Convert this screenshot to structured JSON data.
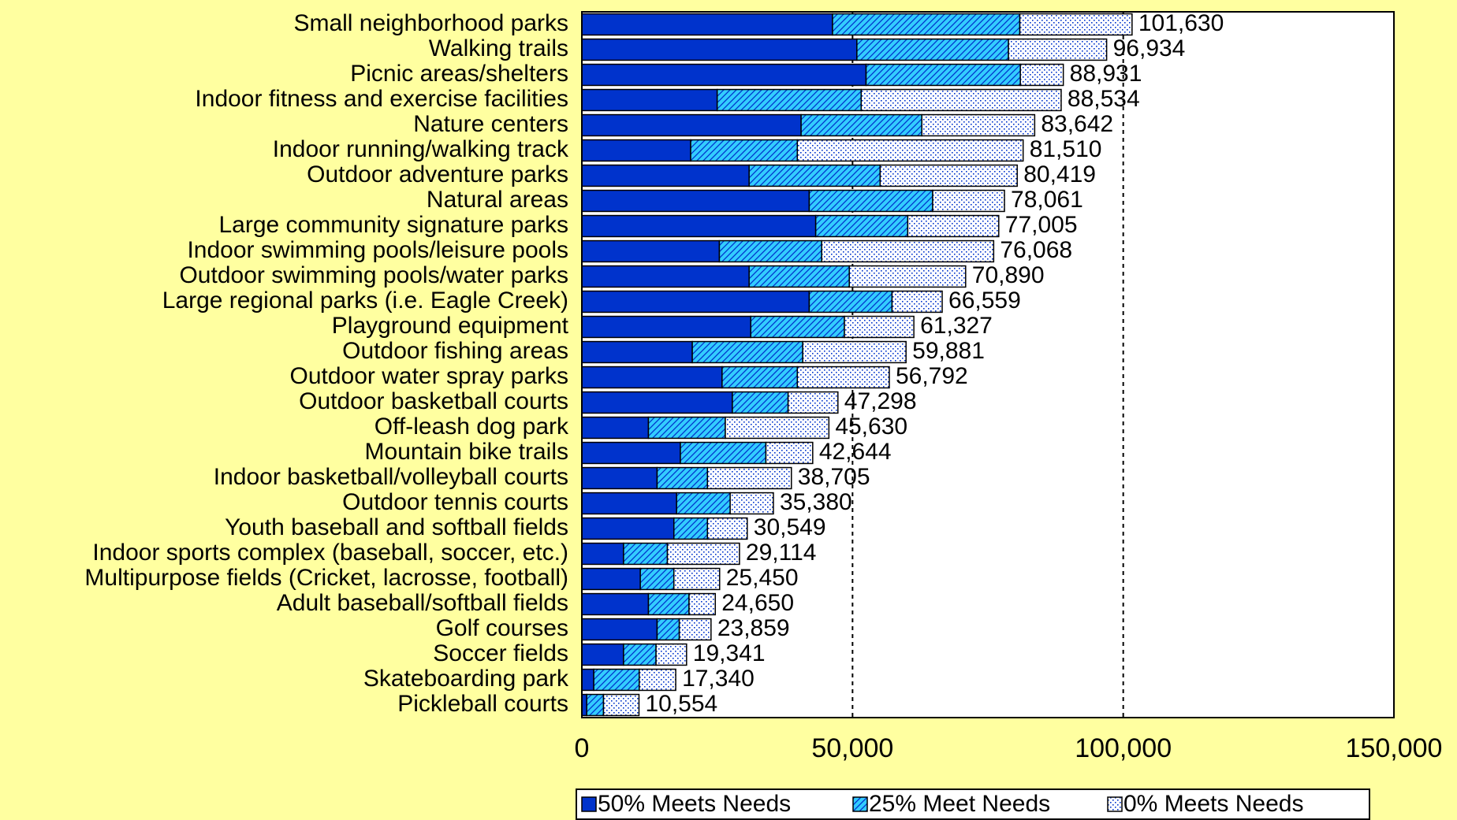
{
  "chart_data": {
    "type": "stacked-bar-horizontal",
    "categories": [
      "Small neighborhood parks",
      "Walking trails",
      "Picnic areas/shelters",
      "Indoor fitness and exercise facilities",
      "Nature centers",
      "Indoor running/walking track",
      "Outdoor adventure parks",
      "Natural areas",
      "Large community signature parks",
      "Indoor swimming pools/leisure pools",
      "Outdoor swimming pools/water parks",
      "Large regional parks (i.e. Eagle Creek)",
      "Playground equipment",
      "Outdoor fishing areas",
      "Outdoor water spray parks",
      "Outdoor basketball courts",
      "Off-leash dog park",
      "Mountain bike trails",
      "Indoor basketball/volleyball courts",
      "Outdoor tennis courts",
      "Youth baseball and softball fields",
      "Indoor sports complex (baseball, soccer, etc.)",
      "Multipurpose fields (Cricket, lacrosse, football)",
      "Adult baseball/softball fields",
      "Golf courses",
      "Soccer fields",
      "Skateboarding park",
      "Pickleball courts"
    ],
    "series": [
      {
        "name": "50% Meets Needs",
        "color": "#0033cc",
        "values": [
          46300,
          50800,
          52500,
          25000,
          40500,
          20100,
          30900,
          42000,
          43200,
          25400,
          30900,
          42000,
          31200,
          20400,
          25900,
          27800,
          12300,
          18200,
          13900,
          17500,
          17000,
          7700,
          10800,
          12300,
          13900,
          7700,
          2200,
          900
        ]
      },
      {
        "name": "25% Meet Needs",
        "color": "#33ccff",
        "values": [
          34600,
          28000,
          28500,
          26600,
          22300,
          19700,
          24200,
          22800,
          17000,
          18900,
          18500,
          15300,
          17300,
          20400,
          13900,
          10300,
          14200,
          15800,
          9300,
          9900,
          6200,
          8100,
          6200,
          7500,
          4100,
          6000,
          8400,
          3100
        ]
      },
      {
        "name": "0% Meets Needs",
        "color": "#ffffff",
        "values": [
          20730,
          18134,
          7931,
          36934,
          20842,
          41710,
          25319,
          13261,
          16805,
          31768,
          21490,
          9259,
          12827,
          19081,
          16992,
          9198,
          19130,
          8644,
          15505,
          7980,
          7349,
          13314,
          8450,
          4850,
          5859,
          5641,
          6740,
          6554
        ]
      }
    ],
    "totals": [
      101630,
      96934,
      88931,
      88534,
      83642,
      81510,
      80419,
      78061,
      77005,
      76068,
      70890,
      66559,
      61327,
      59881,
      56792,
      47298,
      45630,
      42644,
      38705,
      35380,
      30549,
      29114,
      25450,
      24650,
      23859,
      19341,
      17340,
      10554
    ],
    "total_labels": [
      "101,630",
      "96,934",
      "88,931",
      "88,534",
      "83,642",
      "81,510",
      "80,419",
      "78,061",
      "77,005",
      "76,068",
      "70,890",
      "66,559",
      "61,327",
      "59,881",
      "56,792",
      "47,298",
      "45,630",
      "42,644",
      "38,705",
      "35,380",
      "30,549",
      "29,114",
      "25,450",
      "24,650",
      "23,859",
      "19,341",
      "17,340",
      "10,554"
    ],
    "xlim": [
      0,
      150000
    ],
    "xticks": [
      0,
      {
        "value": 50000,
        "label": "50,000"
      },
      {
        "value": 100000,
        "label": "100,000"
      },
      {
        "value": 150000,
        "label": "150,000"
      }
    ],
    "grid": true,
    "legend": "bottom"
  }
}
